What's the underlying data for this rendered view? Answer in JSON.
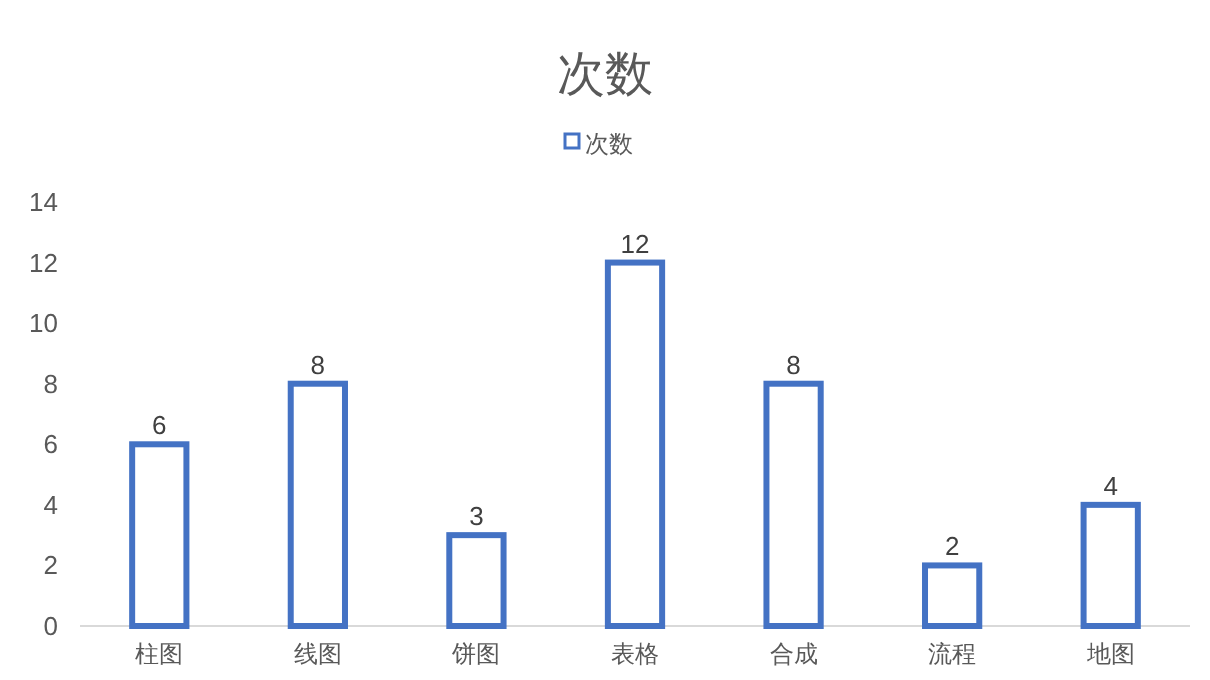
{
  "chart_data": {
    "type": "bar",
    "title": "次数",
    "categories": [
      "柱图",
      "线图",
      "饼图",
      "表格",
      "合成",
      "流程",
      "地图"
    ],
    "series": [
      {
        "name": "次数",
        "color": "#4472c4",
        "values": [
          6,
          8,
          3,
          12,
          8,
          2,
          4
        ]
      }
    ],
    "ylim": [
      0,
      14
    ],
    "yticks": [
      0,
      2,
      4,
      6,
      8,
      10,
      12,
      14
    ],
    "grid": false,
    "legend": "top",
    "data_labels": true
  }
}
